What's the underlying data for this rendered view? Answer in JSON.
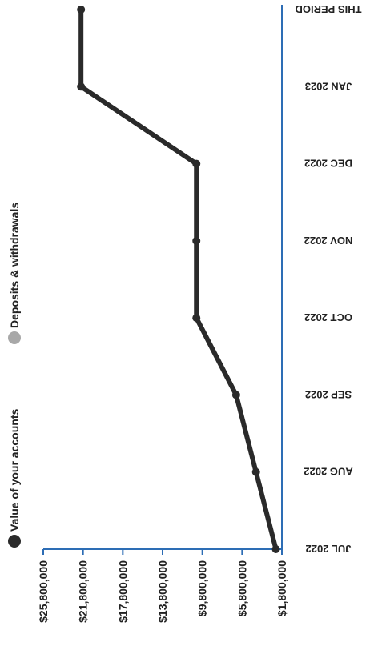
{
  "chart_data": {
    "type": "line",
    "orientation": "rotated",
    "categories": [
      "JUL 2022",
      "AUG 2022",
      "SEP 2022",
      "OCT 2022",
      "NOV 2022",
      "DEC 2022",
      "JAN 2023",
      "THIS PERIOD"
    ],
    "series": [
      {
        "name": "Value of your accounts",
        "color": "#2a2a2a",
        "values": [
          2400000,
          4400000,
          6400000,
          10400000,
          10400000,
          10400000,
          22000000,
          22000000
        ]
      }
    ],
    "legend": [
      {
        "label": "Value of your accounts",
        "color": "#2a2a2a"
      },
      {
        "label": "Deposits & withdrawals",
        "color": "#a8a8a8"
      }
    ],
    "y_ticks": [
      {
        "value": 25800000,
        "label": "$25,800,000"
      },
      {
        "value": 21800000,
        "label": "$21,800,000"
      },
      {
        "value": 17800000,
        "label": "$17,800,000"
      },
      {
        "value": 13800000,
        "label": "$13,800,000"
      },
      {
        "value": 9800000,
        "label": "$9,800,000"
      },
      {
        "value": 5800000,
        "label": "$5,800,000"
      },
      {
        "value": 1800000,
        "label": "$1,800,000"
      }
    ],
    "ylim": [
      1800000,
      25800000
    ],
    "axis_color": "#2d6db5",
    "grid": false,
    "legend_position": "left"
  }
}
